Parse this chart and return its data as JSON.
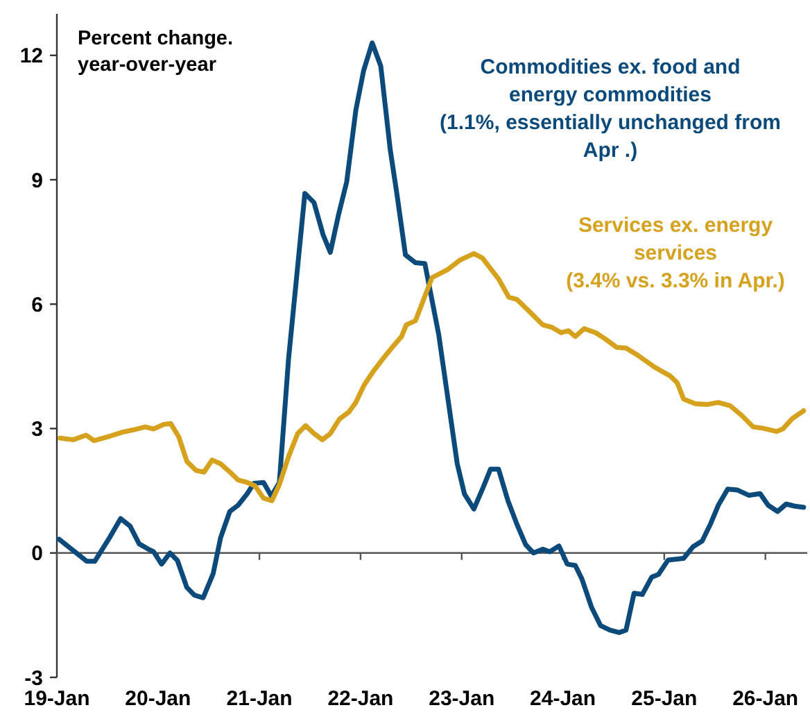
{
  "chart_data": {
    "type": "line",
    "ylabel": "Percent change.\nyear-over-year",
    "xlim": [
      "2019-01-01",
      "2026-06-01"
    ],
    "xticks": [
      {
        "value": "2019-01-01",
        "label": "19-Jan"
      },
      {
        "value": "2020-01-01",
        "label": "20-Jan"
      },
      {
        "value": "2021-01-01",
        "label": "21-Jan"
      },
      {
        "value": "2022-01-01",
        "label": "22-Jan"
      },
      {
        "value": "2023-01-01",
        "label": "23-Jan"
      },
      {
        "value": "2024-01-01",
        "label": "24-Jan"
      },
      {
        "value": "2025-01-01",
        "label": "25-Jan"
      },
      {
        "value": "2026-01-01",
        "label": "26-Jan"
      }
    ],
    "ylim": [
      -3,
      13
    ],
    "yticks": [
      -3,
      0,
      3,
      6,
      9,
      12
    ],
    "line_style": "solid",
    "marker": "none",
    "series": [
      {
        "name": "Commodities ex. food and\nenergy commodities\n(1.1%, essentially unchanged from\nApr .)",
        "color": "#0b4a7b",
        "x": [
          "2019-01-09",
          "2019-04-19",
          "2019-05-18",
          "2019-07-13",
          "2019-08-19",
          "2019-09-22",
          "2019-10-25",
          "2019-11-25",
          "2019-12-16",
          "2020-01-14",
          "2020-02-13",
          "2020-03-11",
          "2020-04-14",
          "2020-05-12",
          "2020-06-12",
          "2020-07-18",
          "2020-08-14",
          "2020-09-16",
          "2020-10-16",
          "2020-11-18",
          "2020-12-12",
          "2021-01-16",
          "2021-02-13",
          "2021-03-14",
          "2021-04-16",
          "2021-06-14",
          "2021-07-17",
          "2021-08-19",
          "2021-09-14",
          "2021-10-14",
          "2021-11-12",
          "2021-12-15",
          "2022-01-12",
          "2022-02-12",
          "2022-03-15",
          "2022-04-18",
          "2022-05-13",
          "2022-06-12",
          "2022-07-18",
          "2022-08-21",
          "2022-10-10",
          "2022-12-16",
          "2023-01-11",
          "2023-02-14",
          "2023-03-17",
          "2023-04-15",
          "2023-05-14",
          "2023-06-17",
          "2023-07-20",
          "2023-08-20",
          "2023-09-17",
          "2023-10-21",
          "2023-11-15",
          "2023-12-18",
          "2024-01-17",
          "2024-02-15",
          "2024-03-10",
          "2024-04-13",
          "2024-05-16",
          "2024-06-19",
          "2024-07-22",
          "2024-08-16",
          "2024-09-14",
          "2024-10-14",
          "2024-11-17",
          "2024-12-11",
          "2025-01-15",
          "2025-03-12",
          "2025-04-15",
          "2025-05-18",
          "2025-06-17",
          "2025-07-15",
          "2025-08-18",
          "2025-09-21",
          "2025-11-02",
          "2025-12-13",
          "2026-01-11",
          "2026-02-14",
          "2026-03-17",
          "2026-04-16",
          "2026-05-19"
        ],
        "values": [
          0.33,
          -0.2,
          -0.2,
          0.4,
          0.83,
          0.65,
          0.22,
          0.1,
          0.03,
          -0.27,
          0,
          -0.18,
          -0.83,
          -1.02,
          -1.08,
          -0.5,
          0.37,
          1.0,
          1.15,
          1.43,
          1.68,
          1.7,
          1.37,
          1.7,
          4.67,
          8.67,
          8.45,
          7.67,
          7.25,
          8.17,
          8.95,
          10.68,
          11.63,
          12.3,
          11.74,
          9.73,
          8.62,
          7.19,
          7.0,
          6.98,
          5.27,
          2.15,
          1.42,
          1.06,
          1.54,
          2.02,
          2.02,
          1.26,
          0.68,
          0.2,
          0,
          0.09,
          0.03,
          0.17,
          -0.27,
          -0.3,
          -0.63,
          -1.3,
          -1.75,
          -1.86,
          -1.92,
          -1.86,
          -0.97,
          -1.0,
          -0.58,
          -0.52,
          -0.17,
          -0.13,
          0.15,
          0.29,
          0.7,
          1.15,
          1.54,
          1.52,
          1.39,
          1.43,
          1.15,
          1.0,
          1.18,
          1.13,
          1.1
        ]
      },
      {
        "name": "Services ex. energy\nservices\n(3.4% vs. 3.3% in Apr.)",
        "color": "#d6a11d",
        "x": [
          "2019-01-12",
          "2019-03-01",
          "2019-04-17",
          "2019-05-15",
          "2019-07-13",
          "2019-08-24",
          "2019-10-05",
          "2019-11-16",
          "2019-12-16",
          "2020-01-22",
          "2020-02-16",
          "2020-03-16",
          "2020-04-14",
          "2020-05-17",
          "2020-06-15",
          "2020-07-14",
          "2020-08-14",
          "2020-09-20",
          "2020-10-16",
          "2020-11-18",
          "2020-12-16",
          "2021-01-16",
          "2021-02-15",
          "2021-03-14",
          "2021-04-16",
          "2021-05-19",
          "2021-06-17",
          "2021-07-17",
          "2021-08-16",
          "2021-09-14",
          "2021-10-17",
          "2021-11-20",
          "2021-12-15",
          "2022-01-14",
          "2022-02-16",
          "2022-03-20",
          "2022-04-23",
          "2022-05-29",
          "2022-06-15",
          "2022-07-18",
          "2022-08-13",
          "2022-09-16",
          "2022-11-13",
          "2022-12-25",
          "2023-02-14",
          "2023-03-17",
          "2023-05-14",
          "2023-06-20",
          "2023-07-20",
          "2023-09-09",
          "2023-10-21",
          "2023-11-23",
          "2023-12-26",
          "2024-01-21",
          "2024-02-15",
          "2024-03-18",
          "2024-04-29",
          "2024-06-02",
          "2024-07-13",
          "2024-08-16",
          "2024-09-27",
          "2024-11-25",
          "2025-01-22",
          "2025-02-17",
          "2025-03-12",
          "2025-04-23",
          "2025-06-04",
          "2025-07-15",
          "2025-08-27",
          "2025-10-07",
          "2025-11-18",
          "2025-12-21",
          "2026-02-10",
          "2026-03-05",
          "2026-04-08",
          "2026-05-19"
        ],
        "values": [
          2.77,
          2.73,
          2.84,
          2.71,
          2.82,
          2.91,
          2.97,
          3.04,
          2.99,
          3.1,
          3.12,
          2.8,
          2.21,
          1.99,
          1.95,
          2.24,
          2.15,
          1.93,
          1.76,
          1.7,
          1.62,
          1.32,
          1.26,
          1.65,
          2.32,
          2.88,
          3.07,
          2.88,
          2.73,
          2.88,
          3.23,
          3.4,
          3.63,
          4.05,
          4.38,
          4.66,
          4.94,
          5.22,
          5.5,
          5.6,
          6.05,
          6.64,
          6.84,
          7.06,
          7.22,
          7.11,
          6.61,
          6.17,
          6.11,
          5.78,
          5.5,
          5.44,
          5.31,
          5.36,
          5.22,
          5.41,
          5.31,
          5.16,
          4.96,
          4.94,
          4.77,
          4.49,
          4.27,
          4.1,
          3.71,
          3.6,
          3.58,
          3.63,
          3.55,
          3.32,
          3.04,
          3.01,
          2.93,
          2.99,
          3.24,
          3.43
        ]
      }
    ]
  }
}
